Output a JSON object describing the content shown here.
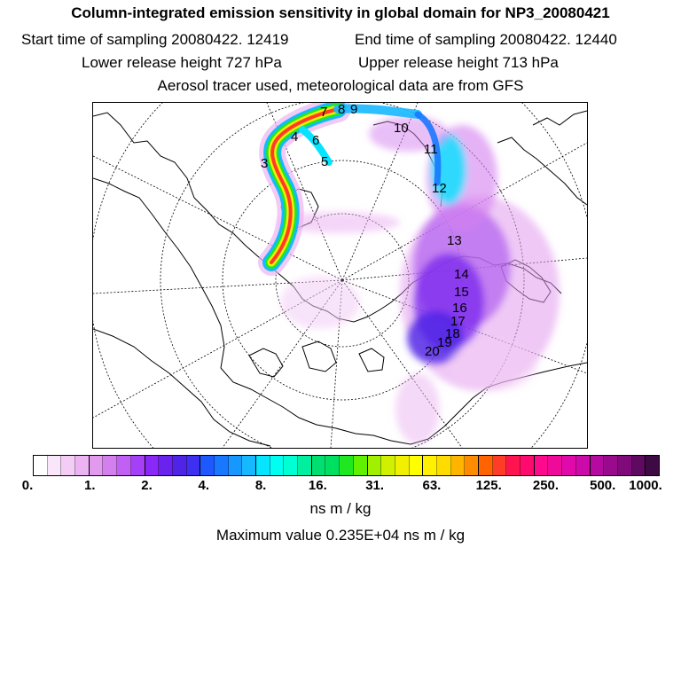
{
  "header": {
    "title": "Column-integrated emission sensitivity in global domain for NP3_20080421",
    "start_time": "Start time of sampling 20080422. 12419",
    "end_time": "End time of sampling 20080422. 12440",
    "lower_height": "Lower release height  727 hPa",
    "upper_height": "Upper release height  713 hPa",
    "tracer_info": "Aerosol tracer used, meteorological data are from GFS"
  },
  "map": {
    "projection": "north-polar-stereographic",
    "trajectory_labels": [
      "3",
      "4",
      "5",
      "6",
      "7",
      "8",
      "9",
      "10",
      "11",
      "12",
      "13",
      "14",
      "15",
      "16",
      "17",
      "18",
      "19",
      "20"
    ]
  },
  "colorbar": {
    "tick_labels": [
      "0.",
      "1.",
      "2.",
      "4.",
      "8.",
      "16.",
      "31.",
      "63.",
      "125.",
      "250.",
      "500.",
      "1000."
    ],
    "colors": [
      "#ffffff",
      "#fae6fa",
      "#f3cdf6",
      "#ecb4f2",
      "#e29aee",
      "#d47ff0",
      "#c060f5",
      "#a640f8",
      "#8a28f8",
      "#6a22ee",
      "#4e24e6",
      "#3e30f0",
      "#1e58ff",
      "#1878ff",
      "#1698ff",
      "#16b8ff",
      "#06e4ff",
      "#00fff0",
      "#00ffd2",
      "#00f0a0",
      "#00e070",
      "#00e060",
      "#20e820",
      "#60f000",
      "#a0f000",
      "#d0f000",
      "#f0f000",
      "#ffff00",
      "#fff000",
      "#ffdc00",
      "#ffb400",
      "#ff8c00",
      "#ff6400",
      "#ff3c28",
      "#ff1450",
      "#ff0a6e",
      "#ff0a8c",
      "#f00a9a",
      "#e00aaa",
      "#cc0aaa",
      "#b40aa0",
      "#9a0a8c",
      "#800a7a",
      "#5e0a60",
      "#3e0a44"
    ],
    "unit": "ns m / kg"
  },
  "max_value": "Maximum value  0.235E+04 ns m / kg"
}
